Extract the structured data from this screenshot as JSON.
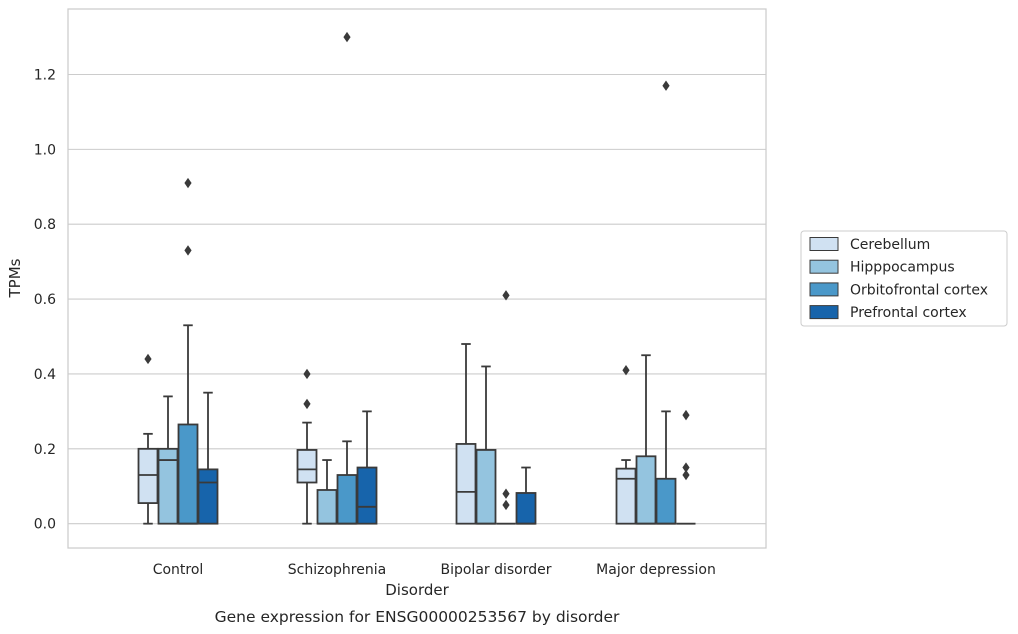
{
  "chart_data": {
    "type": "box",
    "caption": "Gene expression for ENSG00000253567 by disorder",
    "xlabel": "Disorder",
    "ylabel": "TPMs",
    "ylim": [
      -0.065,
      1.375
    ],
    "yticks": [
      "0.0",
      "0.2",
      "0.4",
      "0.6",
      "0.8",
      "1.0",
      "1.2"
    ],
    "grid": true,
    "legend_position": "right",
    "categories": [
      "Control",
      "Schizophrenia",
      "Bipolar disorder",
      "Major depression"
    ],
    "series": [
      {
        "name": "Cerebellum",
        "color": "#d0e1f2",
        "boxes": [
          {
            "min": 0.0,
            "q1": 0.055,
            "median": 0.13,
            "q3": 0.2,
            "max": 0.24,
            "outliers": [
              0.44
            ]
          },
          {
            "min": 0.0,
            "q1": 0.11,
            "median": 0.145,
            "q3": 0.197,
            "max": 0.27,
            "outliers": [
              0.32,
              0.4
            ]
          },
          {
            "min": 0.0,
            "q1": 0.0,
            "median": 0.085,
            "q3": 0.213,
            "max": 0.48,
            "outliers": []
          },
          {
            "min": 0.0,
            "q1": 0.0,
            "median": 0.12,
            "q3": 0.147,
            "max": 0.17,
            "outliers": [
              0.41
            ]
          }
        ]
      },
      {
        "name": "Hipppocampus",
        "color": "#94c4df",
        "boxes": [
          {
            "min": 0.0,
            "q1": 0.0,
            "median": 0.17,
            "q3": 0.2,
            "max": 0.34,
            "outliers": []
          },
          {
            "min": 0.0,
            "q1": 0.0,
            "median": 0.0,
            "q3": 0.09,
            "max": 0.17,
            "outliers": []
          },
          {
            "min": 0.0,
            "q1": 0.0,
            "median": 0.0,
            "q3": 0.197,
            "max": 0.42,
            "outliers": []
          },
          {
            "min": 0.0,
            "q1": 0.0,
            "median": 0.0,
            "q3": 0.18,
            "max": 0.45,
            "outliers": []
          }
        ]
      },
      {
        "name": "Orbitofrontal cortex",
        "color": "#4a98c9",
        "boxes": [
          {
            "min": 0.0,
            "q1": 0.0,
            "median": 0.0,
            "q3": 0.265,
            "max": 0.53,
            "outliers": [
              0.73,
              0.91
            ]
          },
          {
            "min": 0.0,
            "q1": 0.0,
            "median": 0.0,
            "q3": 0.13,
            "max": 0.22,
            "outliers": [
              1.3
            ]
          },
          {
            "min": 0.0,
            "q1": 0.0,
            "median": 0.0,
            "q3": 0.0,
            "max": 0.0,
            "outliers": [
              0.05,
              0.08,
              0.61
            ]
          },
          {
            "min": 0.0,
            "q1": 0.0,
            "median": 0.0,
            "q3": 0.12,
            "max": 0.3,
            "outliers": [
              1.17
            ]
          }
        ]
      },
      {
        "name": "Prefrontal cortex",
        "color": "#1764ab",
        "boxes": [
          {
            "min": 0.0,
            "q1": 0.0,
            "median": 0.11,
            "q3": 0.145,
            "max": 0.35,
            "outliers": []
          },
          {
            "min": 0.0,
            "q1": 0.0,
            "median": 0.045,
            "q3": 0.15,
            "max": 0.3,
            "outliers": []
          },
          {
            "min": 0.0,
            "q1": 0.0,
            "median": 0.0,
            "q3": 0.082,
            "max": 0.15,
            "outliers": []
          },
          {
            "min": 0.0,
            "q1": 0.0,
            "median": 0.0,
            "q3": 0.0,
            "max": 0.0,
            "outliers": [
              0.13,
              0.15,
              0.29
            ]
          }
        ]
      }
    ]
  },
  "colors": {
    "grid": "#cccccc",
    "frame": "#cccccc",
    "box_edge": "#3a3a3a",
    "whisker": "#3a3a3a"
  }
}
